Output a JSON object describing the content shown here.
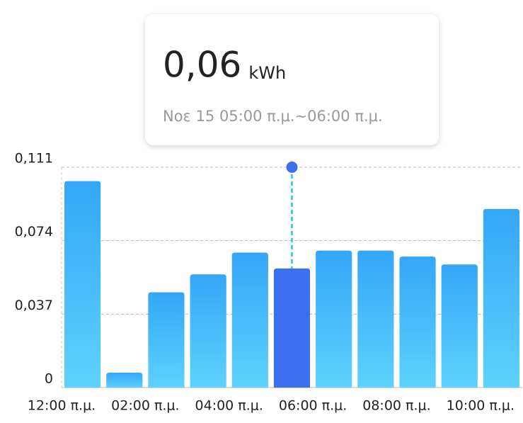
{
  "chart_data": {
    "type": "bar",
    "tooltip": {
      "value": "0,06",
      "unit": "kWh",
      "period": "Νοε 15 05:00 π.μ.~06:00 π.μ."
    },
    "x": [
      0,
      1,
      2,
      3,
      4,
      5,
      6,
      7,
      8,
      9,
      10
    ],
    "values": [
      0.104,
      0.0075,
      0.048,
      0.057,
      0.068,
      0.06,
      0.069,
      0.069,
      0.066,
      0.062,
      0.09
    ],
    "highlight": 5,
    "color": "#35a6f7",
    "color_bottom": "#5dd2fc",
    "highlight_color": "#3a6ff0",
    "xlim": [
      0,
      11
    ],
    "xticks": [
      {
        "value": 0,
        "label": "12:00 π.μ."
      },
      {
        "value": 2,
        "label": "02:00 π.μ."
      },
      {
        "value": 4,
        "label": "04:00 π.μ."
      },
      {
        "value": 6,
        "label": "06:00 π.μ."
      },
      {
        "value": 8,
        "label": "08:00 π.μ."
      },
      {
        "value": 10,
        "label": "10:00 π.μ."
      }
    ],
    "ylim": [
      0,
      0.111
    ],
    "yticks": [
      0,
      {
        "value": 0.037,
        "label": "0,037"
      },
      {
        "value": 0.074,
        "label": "0,074"
      },
      {
        "value": 0.111,
        "label": "0,111"
      }
    ],
    "grid": true
  }
}
